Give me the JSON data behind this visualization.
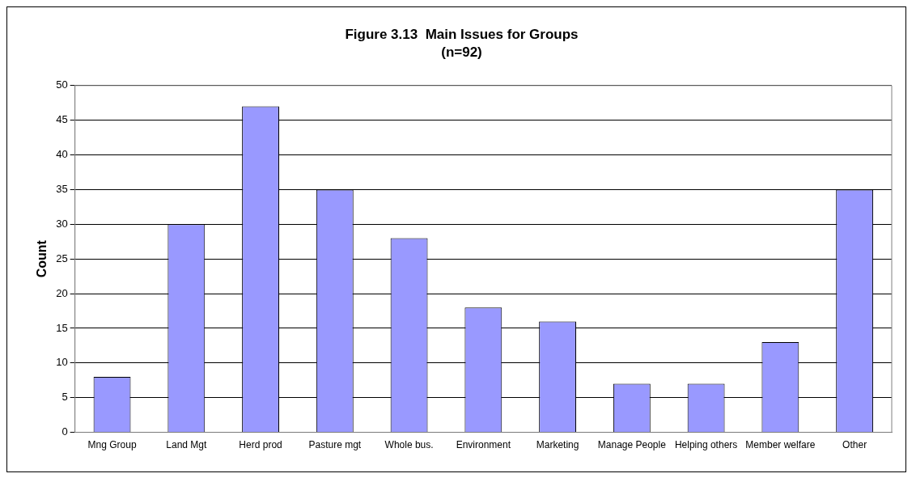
{
  "chart_data": {
    "type": "bar",
    "title": "Figure 3.13  Main Issues for Groups",
    "subtitle": "(n=92)",
    "ylabel": "Count",
    "categories": [
      "Mng Group",
      "Land Mgt",
      "Herd prod",
      "Pasture mgt",
      "Whole bus.",
      "Environment",
      "Marketing",
      "Manage People",
      "Helping others",
      "Member welfare",
      "Other"
    ],
    "values": [
      8,
      30,
      47,
      35,
      28,
      18,
      16,
      7,
      7,
      13,
      35
    ],
    "color": "#9999ff",
    "ylim": [
      0,
      50
    ],
    "yticks": [
      0,
      5,
      10,
      15,
      20,
      25,
      30,
      35,
      40,
      45,
      50
    ],
    "grid": "y",
    "legend": false
  }
}
